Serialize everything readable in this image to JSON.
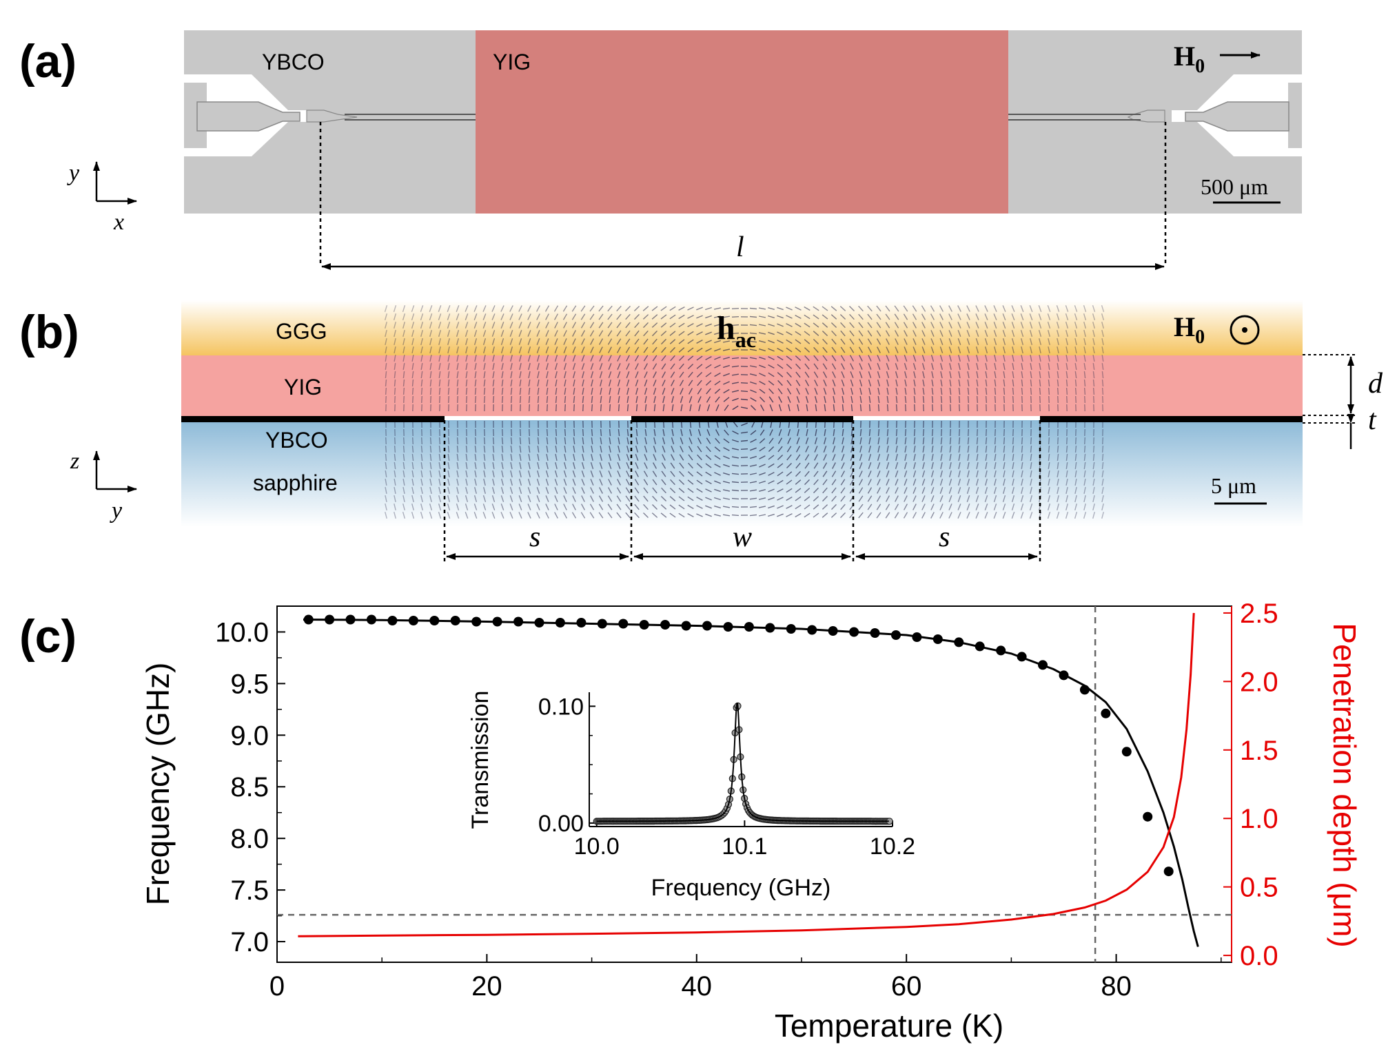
{
  "panel_a": {
    "label": "(a)",
    "ybco_label": "YBCO",
    "yig_label": "YIG",
    "field_label": "H",
    "field_sub": "0",
    "scale_bar_text": "500 μm",
    "axis_y": "y",
    "axis_x": "x",
    "length_label": "l",
    "colors": {
      "substrate": "#c8c8c8",
      "yig": "#d4807c"
    }
  },
  "panel_b": {
    "label": "(b)",
    "ggg_label": "GGG",
    "yig_label": "YIG",
    "ybco_label": "YBCO",
    "sapphire_label": "sapphire",
    "hac_label": "h",
    "hac_sub": "ac",
    "field_label": "H",
    "field_sub": "0",
    "d_label": "d",
    "t_label": "t",
    "scale_bar_text": "5 μm",
    "axis_z": "z",
    "axis_y": "y",
    "s_label_left": "s",
    "w_label": "w",
    "s_label_right": "s",
    "colors": {
      "ggg": "#f7c766",
      "yig": "#f5a3a0",
      "sapphire": "#8fbcd9"
    }
  },
  "panel_c": {
    "label": "(c)",
    "colors": {
      "frequency": "#000000",
      "penetration": "#e60000",
      "guide": "#666666"
    }
  },
  "chart_data": [
    {
      "type": "line",
      "title": "",
      "xlabel": "Temperature (K)",
      "ylabel": "Frequency (GHz)",
      "y2label": "Penetration depth (μm)",
      "xlim": [
        0,
        91
      ],
      "ylim": [
        6.8,
        10.25
      ],
      "y2lim": [
        -0.05,
        2.55
      ],
      "xticks": [
        "0",
        "20",
        "40",
        "60",
        "80"
      ],
      "yticks": [
        "7.0",
        "7.5",
        "8.0",
        "8.5",
        "9.0",
        "9.5",
        "10.0"
      ],
      "y2ticks": [
        "0.0",
        "0.5",
        "1.0",
        "1.5",
        "2.0",
        "2.5"
      ],
      "grid": false,
      "series": [
        {
          "axis": "left",
          "style": "markers",
          "x": [
            3,
            5,
            7,
            9,
            11,
            13,
            15,
            17,
            19,
            21,
            23,
            25,
            27,
            29,
            31,
            33,
            35,
            37,
            39,
            41,
            43,
            45,
            47,
            49,
            51,
            53,
            55,
            57,
            59,
            61,
            63,
            65,
            67,
            69,
            71,
            73,
            75,
            77,
            79,
            81,
            83,
            85
          ],
          "y": [
            10.12,
            10.12,
            10.12,
            10.12,
            10.11,
            10.11,
            10.11,
            10.11,
            10.1,
            10.1,
            10.1,
            10.09,
            10.09,
            10.09,
            10.08,
            10.08,
            10.07,
            10.07,
            10.06,
            10.06,
            10.05,
            10.05,
            10.04,
            10.03,
            10.02,
            10.01,
            10.0,
            9.99,
            9.97,
            9.95,
            9.93,
            9.9,
            9.86,
            9.82,
            9.76,
            9.68,
            9.58,
            9.44,
            9.21,
            8.84,
            8.21,
            7.68
          ]
        },
        {
          "axis": "left",
          "style": "line",
          "x": [
            2.5,
            10,
            20,
            30,
            40,
            50,
            60,
            65,
            70,
            74,
            77,
            79,
            81,
            83,
            84.5,
            85.5,
            86.3,
            86.9,
            87.4,
            87.8
          ],
          "y": [
            10.12,
            10.115,
            10.1,
            10.08,
            10.06,
            10.03,
            9.97,
            9.9,
            9.79,
            9.64,
            9.48,
            9.32,
            9.06,
            8.65,
            8.25,
            7.92,
            7.6,
            7.32,
            7.1,
            6.95
          ]
        },
        {
          "axis": "right",
          "style": "line",
          "x": [
            2,
            10,
            20,
            30,
            40,
            50,
            60,
            65,
            70,
            74,
            77,
            79,
            81,
            83,
            84.5,
            85.5,
            86.2,
            86.7,
            87.1,
            87.4
          ],
          "y": [
            0.14,
            0.145,
            0.15,
            0.158,
            0.168,
            0.183,
            0.208,
            0.228,
            0.262,
            0.302,
            0.35,
            0.4,
            0.48,
            0.61,
            0.79,
            1.01,
            1.3,
            1.65,
            2.05,
            2.5
          ]
        }
      ],
      "guides": {
        "temperature": 78,
        "frequency": 7.26
      }
    },
    {
      "type": "scatter",
      "title": "",
      "xlabel": "Frequency (GHz)",
      "ylabel": "Transmission",
      "xlim": [
        9.995,
        10.2
      ],
      "ylim": [
        -0.003,
        0.112
      ],
      "xticks": [
        "10.0",
        "10.1",
        "10.2"
      ],
      "yticks": [
        "0.00",
        "0.10"
      ],
      "series": [
        {
          "name": "",
          "style": "markers+line",
          "peak_frequency": 10.095,
          "peak_transmission": 0.103,
          "half_width": 0.0024,
          "baseline": 0.0015
        }
      ]
    }
  ]
}
